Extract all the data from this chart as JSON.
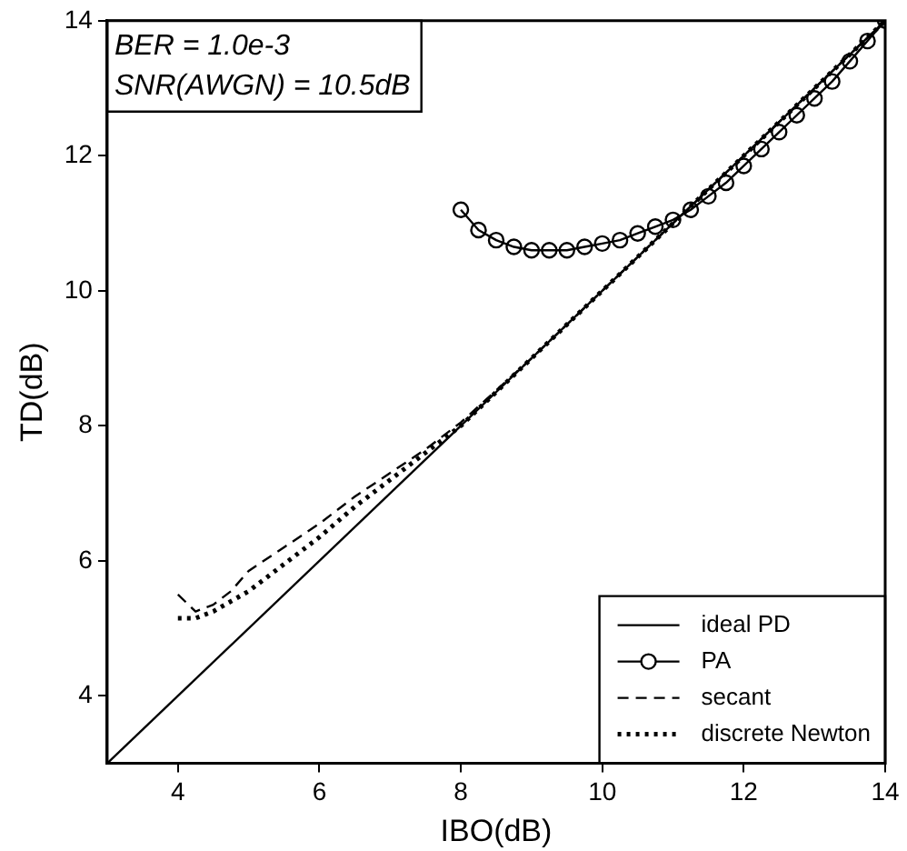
{
  "chart_data": {
    "type": "line",
    "xlabel": "IBO(dB)",
    "ylabel": "TD(dB)",
    "xlim": [
      3,
      14
    ],
    "ylim": [
      3,
      14
    ],
    "xticks": [
      4,
      6,
      8,
      10,
      12,
      14
    ],
    "yticks": [
      4,
      6,
      8,
      10,
      12,
      14
    ],
    "grid": false,
    "legend": "bottom right",
    "annotations": [
      "BER = 1.0e-3",
      "SNR(AWGN) = 10.5dB"
    ],
    "series": [
      {
        "name": "ideal PD",
        "color": "#000000",
        "line_style": "solid",
        "x": [
          3,
          14
        ],
        "values": [
          3,
          14
        ]
      },
      {
        "name": "PA",
        "color": "#000000",
        "marker": "circle",
        "line_style": "solid",
        "x": [
          8,
          8.25,
          8.5,
          8.75,
          9,
          9.25,
          9.5,
          9.75,
          10,
          10.25,
          10.5,
          10.75,
          11,
          11.25,
          11.5,
          11.75,
          12,
          12.25,
          12.5,
          12.75,
          13,
          13.25,
          13.5,
          13.75,
          14
        ],
        "values": [
          11.2,
          10.9,
          10.75,
          10.65,
          10.6,
          10.6,
          10.6,
          10.65,
          10.7,
          10.75,
          10.85,
          10.95,
          11.05,
          11.2,
          11.4,
          11.6,
          11.85,
          12.1,
          12.35,
          12.6,
          12.85,
          13.1,
          13.4,
          13.7,
          14
        ]
      },
      {
        "name": "secant",
        "color": "#000000",
        "line_style": "dashed",
        "x": [
          4,
          4.25,
          4.5,
          4.75,
          5,
          5.5,
          6,
          6.5,
          7,
          7.5,
          8,
          9,
          10,
          11,
          12,
          13,
          14
        ],
        "values": [
          5.5,
          5.25,
          5.35,
          5.55,
          5.85,
          6.2,
          6.55,
          6.95,
          7.3,
          7.65,
          8.05,
          9,
          10,
          11,
          12,
          13,
          14
        ]
      },
      {
        "name": "discrete Newton",
        "color": "#000000",
        "line_style": "dotted",
        "x": [
          4,
          4.25,
          4.5,
          5,
          5.5,
          6,
          6.5,
          7,
          7.5,
          8,
          9,
          10,
          11,
          12,
          13,
          14
        ],
        "values": [
          5.15,
          5.15,
          5.25,
          5.55,
          5.95,
          6.35,
          6.8,
          7.2,
          7.6,
          8,
          9,
          10,
          11,
          12,
          13,
          14
        ]
      }
    ]
  }
}
